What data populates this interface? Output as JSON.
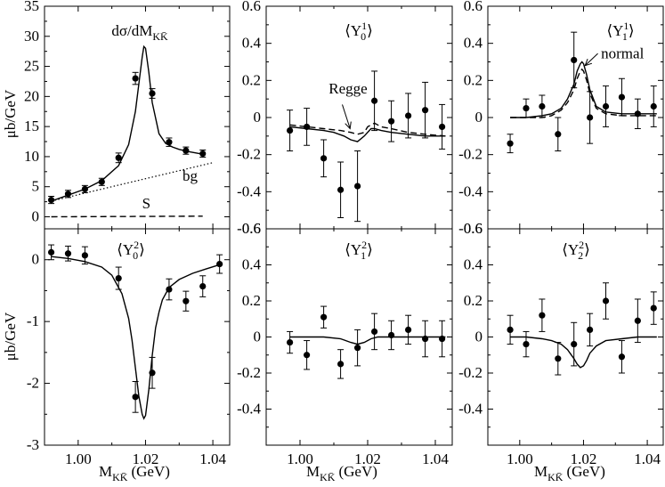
{
  "figure": {
    "y_axis_label": "μb/GeV",
    "x_axis_label": "M",
    "x_axis_sub": "KK̄",
    "x_axis_unit": "(GeV)"
  },
  "chart_data": [
    {
      "id": "p00",
      "type": "scatter",
      "title": "dσ/dM",
      "title_sub": "KK̄",
      "ylabel": "μb/GeV",
      "xlim": [
        0.99,
        1.045
      ],
      "ylim": [
        -2,
        35
      ],
      "yticks": [
        0,
        5,
        10,
        15,
        20,
        25,
        30,
        35
      ],
      "ytick_labels": [
        "0",
        "5",
        "10",
        "15",
        "20",
        "25",
        "30",
        "35"
      ],
      "xticks": [
        1.0,
        1.02,
        1.04
      ],
      "points": {
        "x": [
          0.992,
          0.997,
          1.002,
          1.007,
          1.012,
          1.017,
          1.022,
          1.027,
          1.032,
          1.037
        ],
        "y": [
          2.8,
          3.8,
          4.6,
          5.8,
          9.8,
          23.0,
          20.5,
          12.4,
          11.0,
          10.5
        ],
        "err": [
          0.6,
          0.6,
          0.6,
          0.6,
          0.8,
          1.0,
          0.8,
          0.7,
          0.6,
          0.6
        ]
      },
      "curves": [
        {
          "name": "fit",
          "style": "solid",
          "x": [
            0.992,
            0.997,
            1.002,
            1.007,
            1.012,
            1.015,
            1.017,
            1.018,
            1.019,
            1.0195,
            1.02,
            1.021,
            1.022,
            1.024,
            1.026,
            1.028,
            1.03,
            1.033,
            1.037
          ],
          "y": [
            2.6,
            3.6,
            4.6,
            6.0,
            8.5,
            12.0,
            17.5,
            22.0,
            26.5,
            28.3,
            28.0,
            24.0,
            19.0,
            13.8,
            12.2,
            11.6,
            11.2,
            10.8,
            10.4
          ]
        },
        {
          "name": "bg",
          "style": "dotted",
          "x": [
            0.992,
            1.04
          ],
          "y": [
            2.6,
            9.0
          ]
        },
        {
          "name": "S",
          "style": "dashed",
          "x": [
            0.992,
            1.037
          ],
          "y": [
            0.0,
            0.1
          ]
        }
      ],
      "annotations": [
        {
          "text": "bg",
          "x": 1.031,
          "y": 6.0
        },
        {
          "text": "S",
          "x": 1.019,
          "y": 1.4
        }
      ]
    },
    {
      "id": "p01",
      "type": "scatter",
      "title": "⟨Y",
      "title_sub": "0",
      "title_sup": "1",
      "title_end": "⟩",
      "xlim": [
        0.99,
        1.045
      ],
      "ylim": [
        -0.6,
        0.6
      ],
      "yticks": [
        -0.6,
        -0.4,
        -0.2,
        0,
        0.2,
        0.4,
        0.6
      ],
      "ytick_labels": [
        "-0.6",
        "-0.4",
        "-0.2",
        "0",
        "0.2",
        "0.4",
        "0.6"
      ],
      "xticks": [
        1.0,
        1.02,
        1.04
      ],
      "points": {
        "x": [
          0.997,
          1.002,
          1.007,
          1.012,
          1.017,
          1.022,
          1.027,
          1.032,
          1.037,
          1.042
        ],
        "y": [
          -0.07,
          -0.05,
          -0.22,
          -0.39,
          -0.37,
          0.09,
          -0.02,
          0.01,
          0.04,
          -0.05
        ],
        "err": [
          0.11,
          0.1,
          0.1,
          0.15,
          0.19,
          0.16,
          0.11,
          0.12,
          0.15,
          0.12
        ]
      },
      "curves": [
        {
          "name": "solid",
          "style": "solid",
          "x": [
            0.997,
            1.002,
            1.007,
            1.01,
            1.013,
            1.015,
            1.017,
            1.019,
            1.021,
            1.022,
            1.024,
            1.027,
            1.032,
            1.037,
            1.043
          ],
          "y": [
            -0.05,
            -0.06,
            -0.07,
            -0.08,
            -0.1,
            -0.12,
            -0.13,
            -0.1,
            -0.06,
            -0.06,
            -0.07,
            -0.08,
            -0.09,
            -0.1,
            -0.1
          ]
        },
        {
          "name": "dashed",
          "style": "dashed",
          "x": [
            0.997,
            1.002,
            1.007,
            1.012,
            1.015,
            1.017,
            1.019,
            1.02,
            1.022,
            1.024,
            1.027,
            1.032,
            1.037,
            1.043
          ],
          "y": [
            -0.04,
            -0.05,
            -0.06,
            -0.07,
            -0.08,
            -0.09,
            -0.08,
            -0.05,
            -0.03,
            -0.05,
            -0.06,
            -0.08,
            -0.09,
            -0.1
          ]
        }
      ],
      "annotations": [
        {
          "text": "Regge",
          "x": 1.0085,
          "y": 0.13
        }
      ],
      "arrows": [
        {
          "x1": 1.0125,
          "y1": 0.07,
          "x2": 1.0148,
          "y2": -0.06
        }
      ]
    },
    {
      "id": "p02",
      "type": "scatter",
      "title": "⟨Y",
      "title_sub": "1",
      "title_sup": "1",
      "title_end": "⟩",
      "xlim": [
        0.99,
        1.045
      ],
      "ylim": [
        -0.6,
        0.6
      ],
      "yticks": [
        -0.6,
        -0.4,
        -0.2,
        0,
        0.2,
        0.4,
        0.6
      ],
      "ytick_labels": [
        "-0.6",
        "-0.4",
        "-0.2",
        "0",
        "0.2",
        "0.4",
        "0.6"
      ],
      "xticks": [
        1.0,
        1.02,
        1.04
      ],
      "points": {
        "x": [
          0.997,
          1.002,
          1.007,
          1.012,
          1.017,
          1.022,
          1.027,
          1.032,
          1.037,
          1.042
        ],
        "y": [
          -0.14,
          0.05,
          0.06,
          -0.09,
          0.31,
          0.0,
          0.06,
          0.11,
          0.02,
          0.06
        ],
        "err": [
          0.05,
          0.05,
          0.06,
          0.09,
          0.15,
          0.14,
          0.11,
          0.1,
          0.08,
          0.11
        ]
      },
      "curves": [
        {
          "name": "solid",
          "style": "solid",
          "x": [
            0.997,
            1.002,
            1.007,
            1.01,
            1.013,
            1.015,
            1.017,
            1.018,
            1.019,
            1.0195,
            1.02,
            1.021,
            1.022,
            1.024,
            1.027,
            1.032,
            1.037,
            1.043
          ],
          "y": [
            0.0,
            0.0,
            0.01,
            0.02,
            0.05,
            0.1,
            0.18,
            0.25,
            0.29,
            0.3,
            0.29,
            0.23,
            0.15,
            0.06,
            0.03,
            0.02,
            0.02,
            0.02
          ]
        },
        {
          "name": "dashed",
          "style": "dashed",
          "x": [
            0.997,
            1.002,
            1.007,
            1.01,
            1.013,
            1.015,
            1.017,
            1.018,
            1.019,
            1.0195,
            1.02,
            1.021,
            1.022,
            1.024,
            1.027,
            1.032,
            1.037,
            1.043
          ],
          "y": [
            0.0,
            0.0,
            0.0,
            0.01,
            0.04,
            0.08,
            0.15,
            0.21,
            0.25,
            0.26,
            0.25,
            0.2,
            0.13,
            0.05,
            0.02,
            0.01,
            0.01,
            0.01
          ]
        }
      ],
      "annotations": [
        {
          "text": "normal",
          "x": 1.0255,
          "y": 0.32
        }
      ],
      "arrows": [
        {
          "x1": 1.0245,
          "y1": 0.345,
          "x2": 1.0205,
          "y2": 0.28
        }
      ]
    },
    {
      "id": "p10",
      "type": "scatter",
      "title": "⟨Y",
      "title_sub": "0",
      "title_sup": "2",
      "title_end": "⟩",
      "ylabel": "μb/GeV",
      "xlim": [
        0.99,
        1.045
      ],
      "ylim": [
        -3,
        0.5
      ],
      "yticks": [
        -3,
        -2,
        -1,
        0
      ],
      "ytick_labels": [
        "-3",
        "-2",
        "-1",
        "0"
      ],
      "xticks": [
        1.0,
        1.02,
        1.04
      ],
      "xtick_labels": [
        "1.00",
        "1.02",
        "1.04"
      ],
      "points": {
        "x": [
          0.992,
          0.997,
          1.002,
          1.012,
          1.017,
          1.022,
          1.027,
          1.032,
          1.037,
          1.042
        ],
        "y": [
          0.12,
          0.1,
          0.07,
          -0.3,
          -2.22,
          -1.83,
          -0.48,
          -0.67,
          -0.43,
          -0.07
        ],
        "err": [
          0.12,
          0.12,
          0.14,
          0.18,
          0.25,
          0.25,
          0.17,
          0.16,
          0.17,
          0.15
        ]
      },
      "curves": [
        {
          "name": "fit",
          "style": "solid",
          "x": [
            0.992,
            0.997,
            1.002,
            1.007,
            1.01,
            1.013,
            1.015,
            1.016,
            1.017,
            1.018,
            1.019,
            1.0195,
            1.02,
            1.021,
            1.022,
            1.023,
            1.024,
            1.025,
            1.027,
            1.03,
            1.034,
            1.038,
            1.042
          ],
          "y": [
            0.05,
            0.02,
            -0.03,
            -0.12,
            -0.25,
            -0.55,
            -0.95,
            -1.3,
            -1.75,
            -2.2,
            -2.5,
            -2.57,
            -2.52,
            -2.1,
            -1.55,
            -1.1,
            -0.85,
            -0.65,
            -0.45,
            -0.32,
            -0.22,
            -0.15,
            -0.08
          ]
        }
      ]
    },
    {
      "id": "p11",
      "type": "scatter",
      "title": "⟨Y",
      "title_sub": "1",
      "title_sup": "2",
      "title_end": "⟩",
      "xlim": [
        0.99,
        1.045
      ],
      "ylim": [
        -0.6,
        0.6
      ],
      "yticks": [
        -0.6,
        -0.4,
        -0.2,
        0,
        0.2,
        0.4,
        0.6
      ],
      "ytick_labels": [
        "",
        "-0.4",
        "-0.2",
        "0",
        "0.2",
        "0.4",
        "0.6"
      ],
      "xticks": [
        1.0,
        1.02,
        1.04
      ],
      "points": {
        "x": [
          0.997,
          1.002,
          1.007,
          1.012,
          1.017,
          1.022,
          1.027,
          1.032,
          1.037,
          1.042
        ],
        "y": [
          -0.03,
          -0.1,
          0.11,
          -0.15,
          -0.06,
          0.03,
          0.01,
          0.04,
          -0.01,
          -0.01
        ],
        "err": [
          0.06,
          0.08,
          0.06,
          0.08,
          0.1,
          0.1,
          0.08,
          0.08,
          0.1,
          0.1
        ]
      },
      "curves": [
        {
          "name": "fit",
          "style": "solid",
          "x": [
            0.997,
            1.002,
            1.007,
            1.012,
            1.015,
            1.017,
            1.019,
            1.021,
            1.023,
            1.027,
            1.032,
            1.037,
            1.043
          ],
          "y": [
            0.0,
            0.0,
            0.0,
            -0.01,
            -0.03,
            -0.04,
            -0.03,
            -0.01,
            0.0,
            0.0,
            0.0,
            0.0,
            0.0
          ]
        }
      ]
    },
    {
      "id": "p12",
      "type": "scatter",
      "title": "⟨Y",
      "title_sub": "2",
      "title_sup": "2",
      "title_end": "⟩",
      "xlim": [
        0.99,
        1.045
      ],
      "ylim": [
        -0.6,
        0.6
      ],
      "yticks": [
        -0.6,
        -0.4,
        -0.2,
        0,
        0.2,
        0.4,
        0.6
      ],
      "ytick_labels": [
        "",
        "-0.4",
        "-0.2",
        "0",
        "0.2",
        "0.4",
        "0.6"
      ],
      "xticks": [
        1.0,
        1.02,
        1.04
      ],
      "points": {
        "x": [
          0.997,
          1.002,
          1.007,
          1.012,
          1.017,
          1.022,
          1.027,
          1.032,
          1.037,
          1.042
        ],
        "y": [
          0.04,
          -0.04,
          0.12,
          -0.12,
          -0.04,
          0.04,
          0.2,
          -0.11,
          0.09,
          0.16
        ],
        "err": [
          0.08,
          0.07,
          0.09,
          0.09,
          0.12,
          0.09,
          0.1,
          0.09,
          0.12,
          0.09
        ]
      },
      "curves": [
        {
          "name": "fit",
          "style": "solid",
          "x": [
            0.997,
            1.002,
            1.007,
            1.01,
            1.013,
            1.015,
            1.017,
            1.018,
            1.019,
            1.02,
            1.021,
            1.022,
            1.024,
            1.027,
            1.032,
            1.037,
            1.043
          ],
          "y": [
            0.0,
            0.0,
            -0.01,
            -0.02,
            -0.04,
            -0.07,
            -0.12,
            -0.15,
            -0.17,
            -0.16,
            -0.13,
            -0.09,
            -0.05,
            -0.02,
            -0.01,
            0.0,
            0.0
          ]
        }
      ]
    }
  ]
}
